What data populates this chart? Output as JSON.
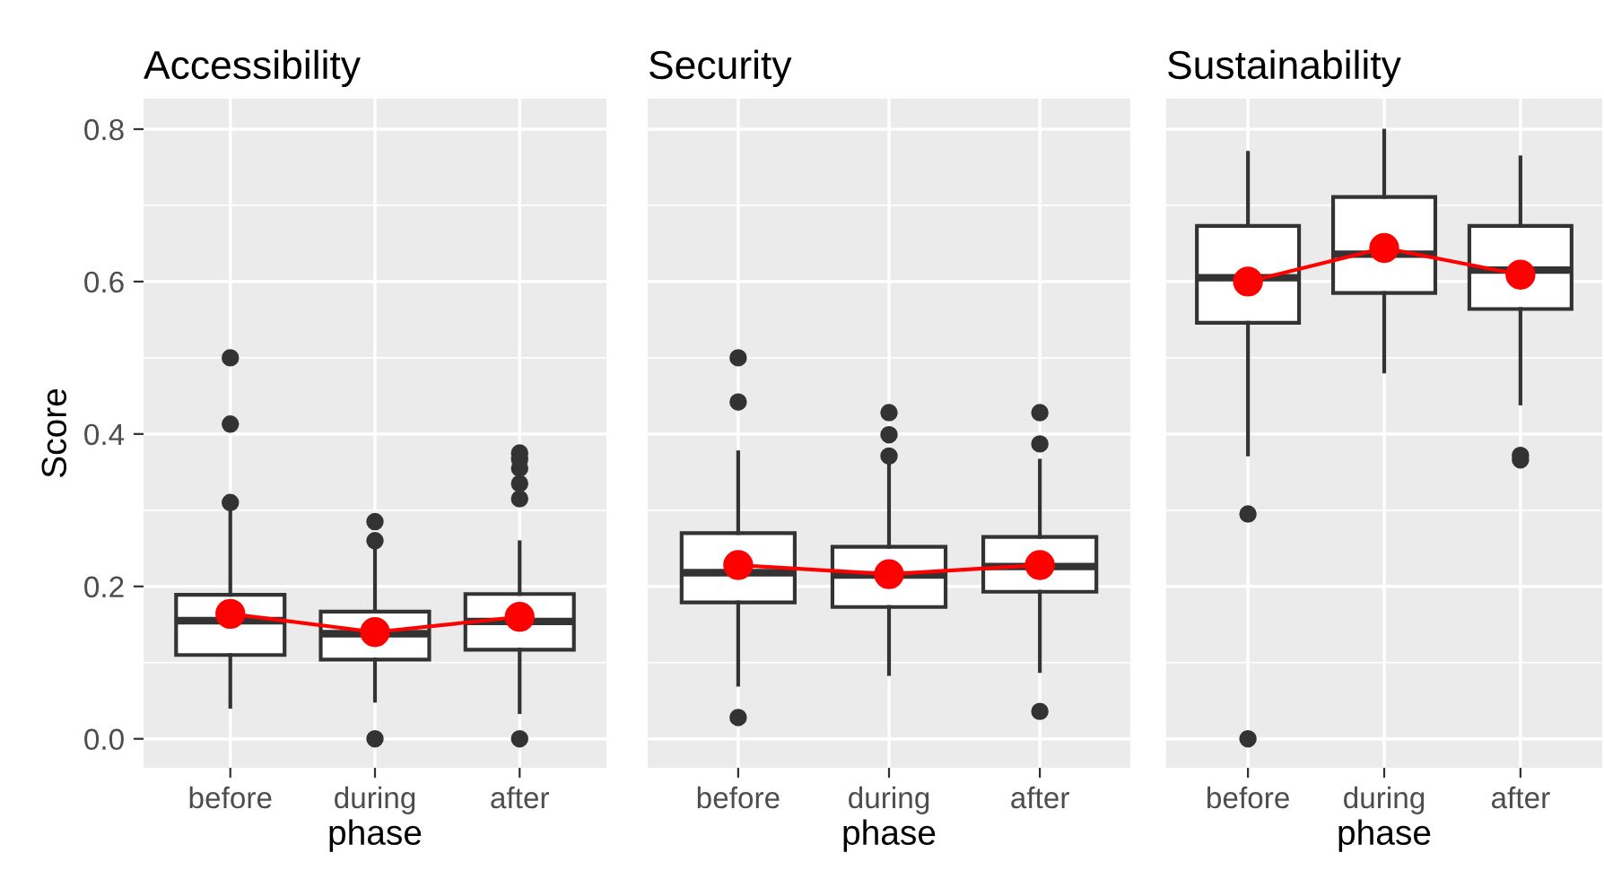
{
  "chart_data": [
    {
      "type": "box",
      "title": "Accessibility",
      "xlabel": "phase",
      "ylabel": "Score",
      "categories": [
        "before",
        "during",
        "after"
      ],
      "ylim": [
        -0.038,
        0.84
      ],
      "yticks": [
        {
          "value": 0.0,
          "label": "0.0"
        },
        {
          "value": 0.2,
          "label": "0.2"
        },
        {
          "value": 0.4,
          "label": "0.4"
        },
        {
          "value": 0.6,
          "label": "0.6"
        },
        {
          "value": 0.8,
          "label": "0.8"
        }
      ],
      "grid": true,
      "color": "#333333",
      "boxes": [
        {
          "low": 0.042,
          "q1": 0.11,
          "median": 0.155,
          "q3": 0.189,
          "high": 0.3,
          "outliers": [
            0.5,
            0.413,
            0.31
          ]
        },
        {
          "low": 0.05,
          "q1": 0.104,
          "median": 0.138,
          "q3": 0.167,
          "high": 0.25,
          "outliers": [
            0.285,
            0.26,
            0.0
          ]
        },
        {
          "low": 0.035,
          "q1": 0.117,
          "median": 0.154,
          "q3": 0.19,
          "high": 0.258,
          "outliers": [
            0.375,
            0.367,
            0.355,
            0.335,
            0.315,
            0.0
          ]
        }
      ],
      "series": [
        {
          "type": "line",
          "marker": "circle",
          "color": "#ff0000",
          "values": [
            0.164,
            0.14,
            0.16
          ]
        }
      ]
    },
    {
      "type": "box",
      "title": "Security",
      "xlabel": "phase",
      "categories": [
        "before",
        "during",
        "after"
      ],
      "ylim": [
        -0.038,
        0.84
      ],
      "yticks": [
        0,
        0.2,
        0.4,
        0.6,
        0.8
      ],
      "tick_labels": "x",
      "grid": true,
      "color": "#333333",
      "boxes": [
        {
          "low": 0.071,
          "q1": 0.179,
          "median": 0.218,
          "q3": 0.27,
          "high": 0.376,
          "outliers": [
            0.5,
            0.442,
            0.028
          ]
        },
        {
          "low": 0.085,
          "q1": 0.173,
          "median": 0.215,
          "q3": 0.252,
          "high": 0.362,
          "outliers": [
            0.428,
            0.399,
            0.371
          ]
        },
        {
          "low": 0.089,
          "q1": 0.193,
          "median": 0.226,
          "q3": 0.265,
          "high": 0.365,
          "outliers": [
            0.428,
            0.387,
            0.036
          ]
        }
      ],
      "series": [
        {
          "type": "line",
          "marker": "circle",
          "color": "#ff0000",
          "values": [
            0.228,
            0.216,
            0.228
          ]
        }
      ]
    },
    {
      "type": "box",
      "title": "Sustainability",
      "xlabel": "phase",
      "categories": [
        "before",
        "during",
        "after"
      ],
      "ylim": [
        -0.038,
        0.84
      ],
      "yticks": [
        0,
        0.2,
        0.4,
        0.6,
        0.8
      ],
      "tick_labels": "x",
      "grid": true,
      "color": "#333333",
      "boxes": [
        {
          "low": 0.373,
          "q1": 0.546,
          "median": 0.605,
          "q3": 0.673,
          "high": 0.769,
          "outliers": [
            0.295,
            0.0
          ]
        },
        {
          "low": 0.482,
          "q1": 0.585,
          "median": 0.636,
          "q3": 0.711,
          "high": 0.798
        },
        {
          "low": 0.44,
          "q1": 0.564,
          "median": 0.615,
          "q3": 0.673,
          "high": 0.763,
          "outliers": [
            0.372,
            0.366
          ]
        }
      ],
      "series": [
        {
          "type": "line",
          "marker": "circle",
          "color": "#ff0000",
          "values": [
            0.6,
            0.644,
            0.609
          ]
        }
      ]
    }
  ]
}
